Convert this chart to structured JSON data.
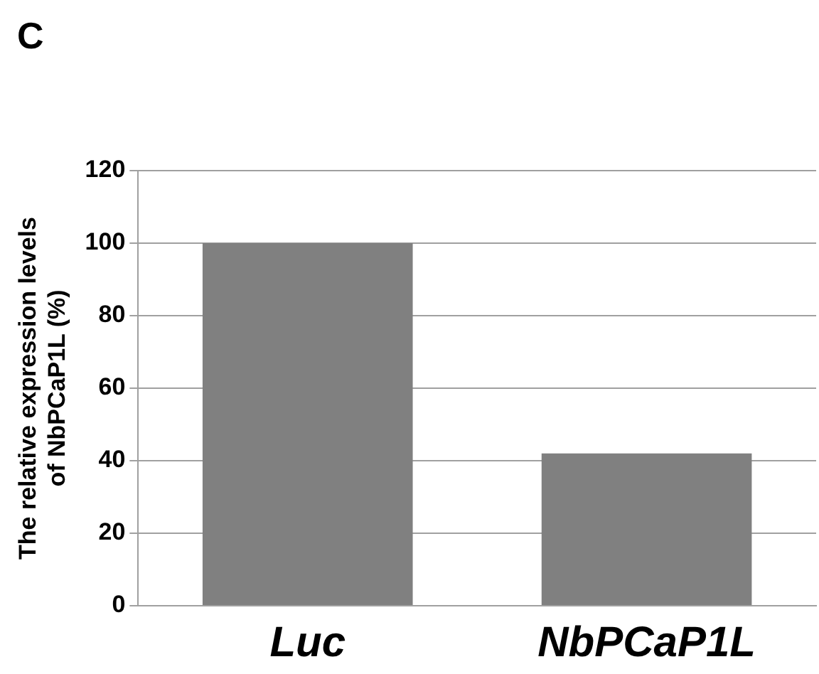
{
  "chart_data": {
    "type": "bar",
    "ylabel": "The relative expression levels\nof NbPCaP1L (%)",
    "categories": [
      "Luc",
      "NbPCaP1L"
    ],
    "values": [
      100,
      42
    ],
    "color": "#808080",
    "ylim": [
      0,
      120
    ],
    "yticks": [
      0,
      20,
      40,
      60,
      80,
      100,
      120
    ],
    "grid": "y",
    "annotations": [
      "C"
    ]
  }
}
